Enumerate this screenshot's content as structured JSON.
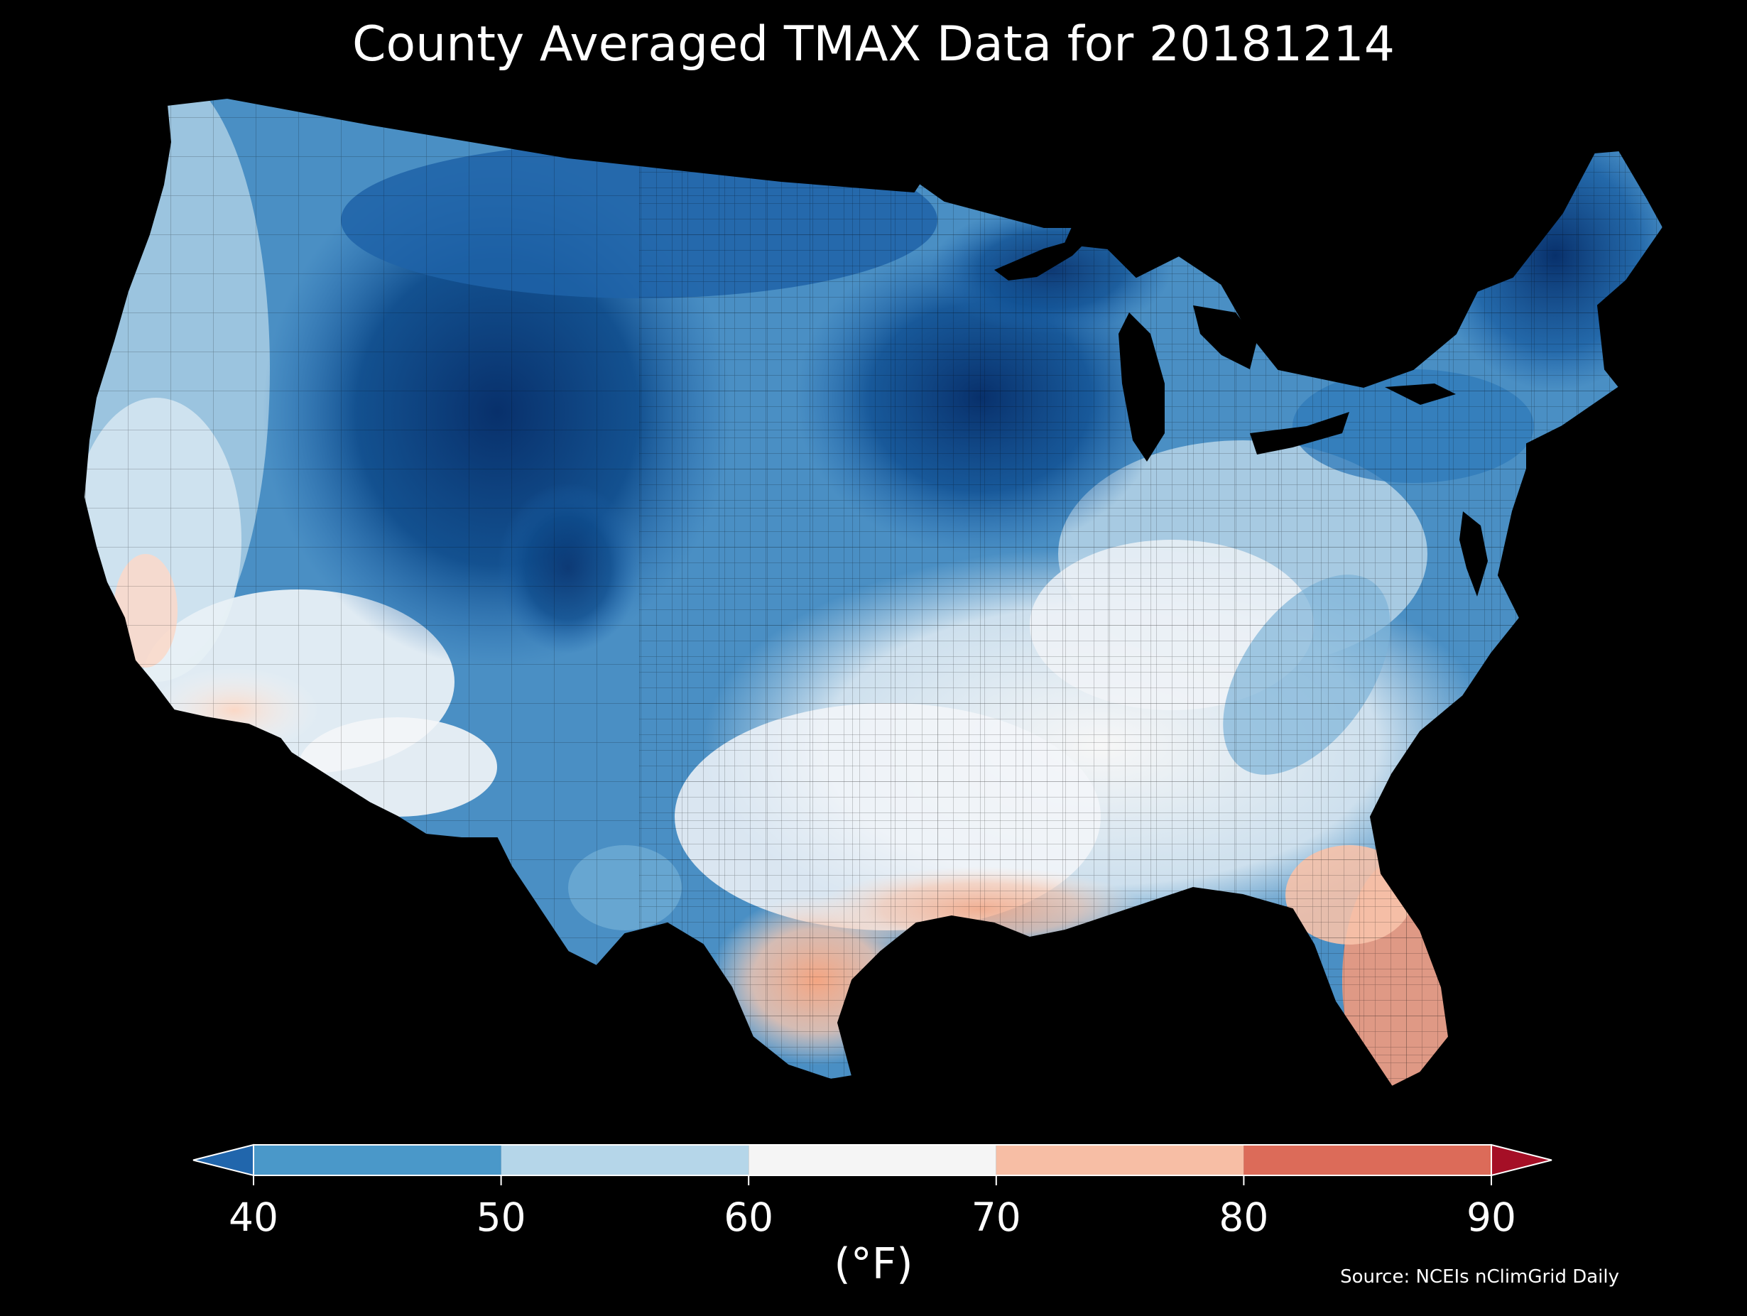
{
  "title": "County Averaged TMAX Data for 20181214",
  "source_note": "Source: NCEIs nClimGrid Daily",
  "colorbar": {
    "units_label": "(°F)",
    "min": 40,
    "max": 90,
    "ticks": [
      "40",
      "50",
      "60",
      "70",
      "80",
      "90"
    ],
    "extend": "both",
    "bins": [
      {
        "from": 40,
        "to": 50,
        "color": "#4a98c9"
      },
      {
        "from": 50,
        "to": 60,
        "color": "#b5d6e9"
      },
      {
        "from": 60,
        "to": 70,
        "color": "#f5f5f5"
      },
      {
        "from": 70,
        "to": 80,
        "color": "#f7bea5"
      },
      {
        "from": 80,
        "to": 90,
        "color": "#dc6b59"
      }
    ],
    "under_color": "#2166ac",
    "over_color": "#a50f26"
  },
  "map": {
    "region": "contiguous United States, county level",
    "background_color": "#000000",
    "regional_tmax_f": [
      {
        "region": "Pacific Northwest coast",
        "tmax_f": 52
      },
      {
        "region": "Northern Rockies and Great Basin",
        "tmax_f": 38
      },
      {
        "region": "Northern Plains",
        "tmax_f": 40
      },
      {
        "region": "Upper Midwest",
        "tmax_f": 34
      },
      {
        "region": "Northeast and Maine",
        "tmax_f": 34
      },
      {
        "region": "Ohio Valley and Mid-Atlantic",
        "tmax_f": 50
      },
      {
        "region": "Southeast",
        "tmax_f": 62
      },
      {
        "region": "Southern California and Arizona",
        "tmax_f": 66
      },
      {
        "region": "Gulf Coast",
        "tmax_f": 70
      },
      {
        "region": "South Texas and Florida",
        "tmax_f": 76
      }
    ]
  }
}
